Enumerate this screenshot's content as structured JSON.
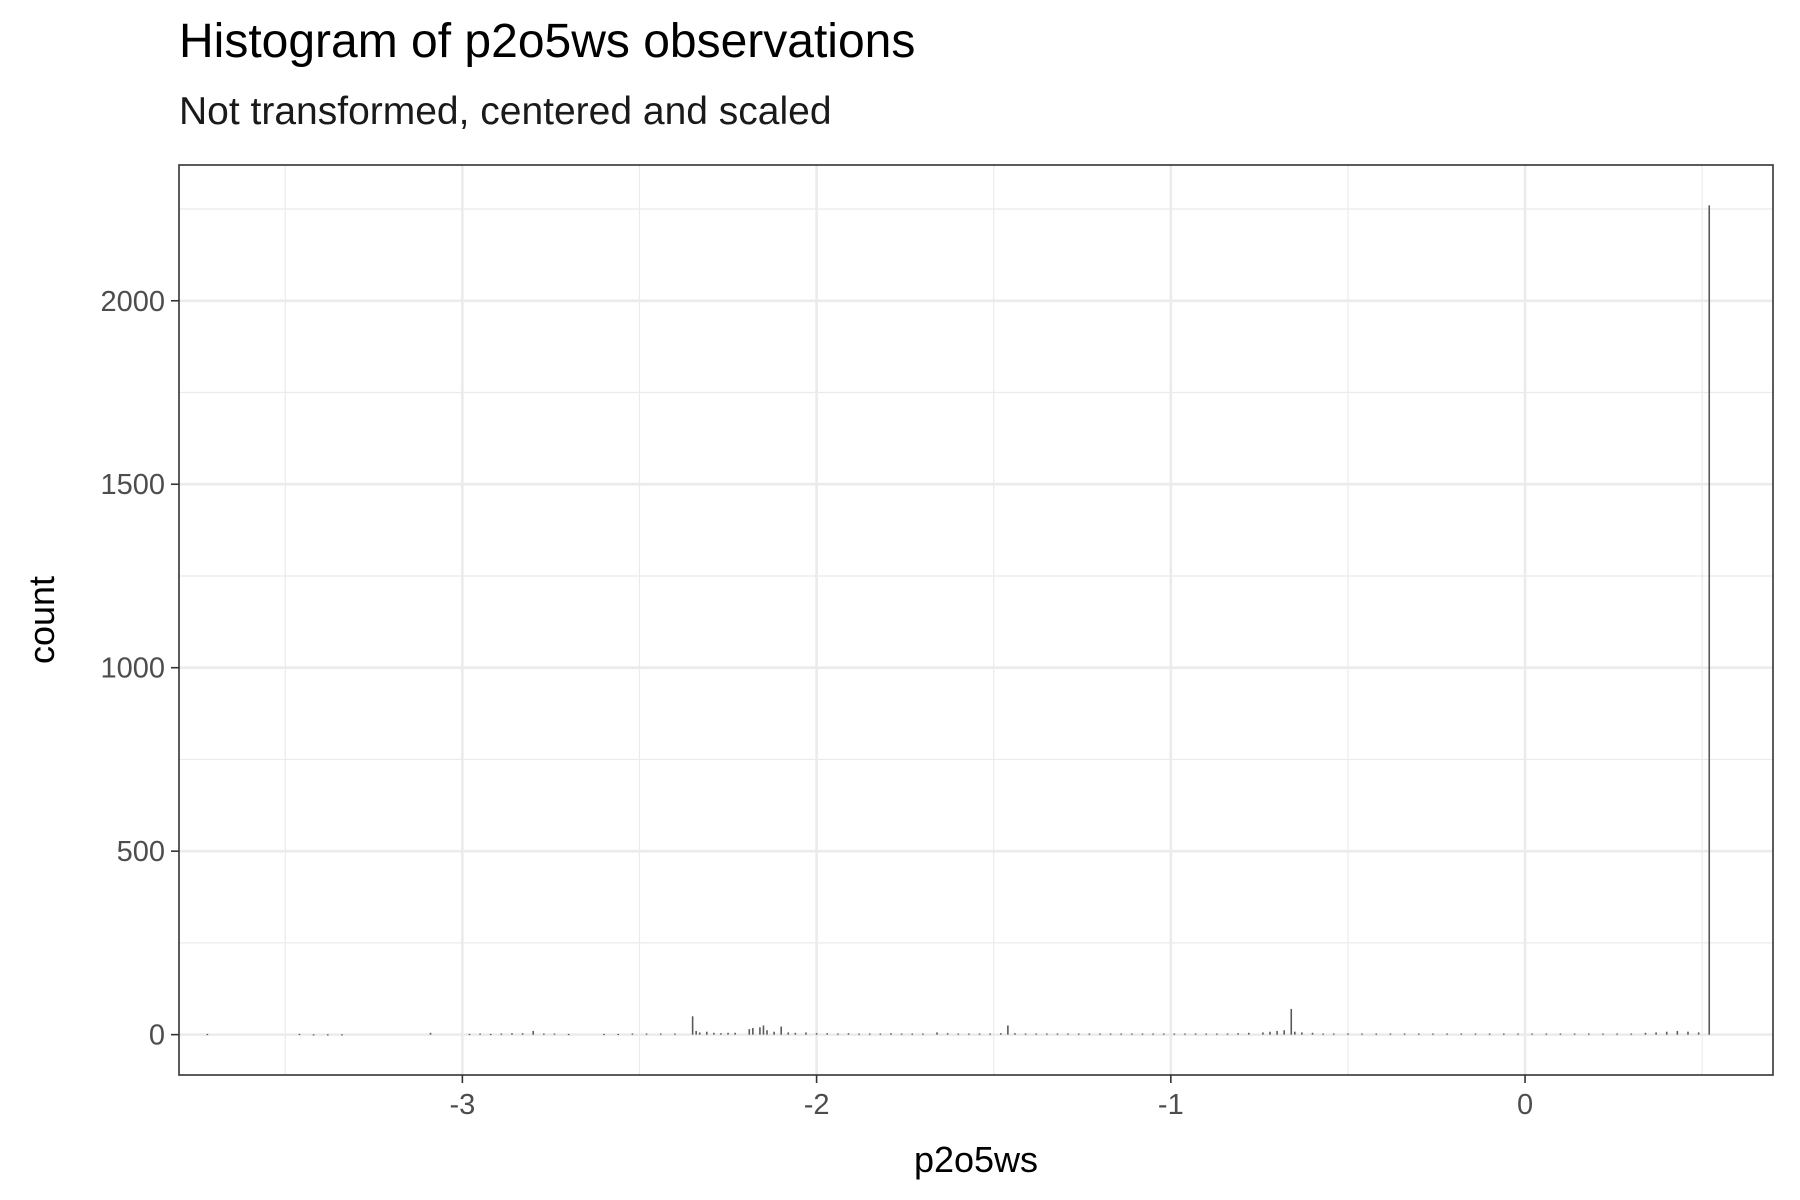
{
  "chart_data": {
    "type": "bar",
    "title": "Histogram of p2o5ws observations",
    "subtitle": "Not transformed, centered and scaled",
    "xlabel": "p2o5ws",
    "ylabel": "count",
    "xlim": [
      -3.8,
      0.7
    ],
    "ylim": [
      -110,
      2370
    ],
    "x_ticks": [
      -3,
      -2,
      -1,
      0
    ],
    "x_tick_labels": [
      "-3",
      "-2",
      "-1",
      "0"
    ],
    "y_ticks": [
      0,
      500,
      1000,
      1500,
      2000
    ],
    "y_tick_labels": [
      "0",
      "500",
      "1000",
      "1500",
      "2000"
    ],
    "grid": true,
    "bar_color": "#595959",
    "bin_width": 0.0045,
    "bins": [
      [
        -3.72,
        2
      ],
      [
        -3.46,
        2
      ],
      [
        -3.42,
        1
      ],
      [
        -3.38,
        1
      ],
      [
        -3.34,
        1
      ],
      [
        -3.09,
        5
      ],
      [
        -2.98,
        2
      ],
      [
        -2.95,
        3
      ],
      [
        -2.92,
        2
      ],
      [
        -2.89,
        3
      ],
      [
        -2.86,
        4
      ],
      [
        -2.83,
        4
      ],
      [
        -2.8,
        10
      ],
      [
        -2.77,
        3
      ],
      [
        -2.74,
        3
      ],
      [
        -2.7,
        2
      ],
      [
        -2.6,
        2
      ],
      [
        -2.56,
        2
      ],
      [
        -2.52,
        3
      ],
      [
        -2.48,
        3
      ],
      [
        -2.44,
        3
      ],
      [
        -2.4,
        3
      ],
      [
        -2.35,
        50
      ],
      [
        -2.34,
        10
      ],
      [
        -2.33,
        6
      ],
      [
        -2.31,
        8
      ],
      [
        -2.29,
        5
      ],
      [
        -2.27,
        4
      ],
      [
        -2.25,
        5
      ],
      [
        -2.23,
        5
      ],
      [
        -2.19,
        15
      ],
      [
        -2.18,
        18
      ],
      [
        -2.16,
        20
      ],
      [
        -2.15,
        25
      ],
      [
        -2.14,
        12
      ],
      [
        -2.12,
        8
      ],
      [
        -2.1,
        22
      ],
      [
        -2.08,
        6
      ],
      [
        -2.06,
        5
      ],
      [
        -2.03,
        6
      ],
      [
        -2.0,
        4
      ],
      [
        -1.97,
        4
      ],
      [
        -1.94,
        3
      ],
      [
        -1.91,
        4
      ],
      [
        -1.88,
        3
      ],
      [
        -1.85,
        3
      ],
      [
        -1.82,
        3
      ],
      [
        -1.79,
        4
      ],
      [
        -1.76,
        3
      ],
      [
        -1.73,
        3
      ],
      [
        -1.7,
        3
      ],
      [
        -1.66,
        6
      ],
      [
        -1.63,
        4
      ],
      [
        -1.6,
        3
      ],
      [
        -1.57,
        3
      ],
      [
        -1.54,
        3
      ],
      [
        -1.51,
        3
      ],
      [
        -1.48,
        4
      ],
      [
        -1.46,
        25
      ],
      [
        -1.44,
        4
      ],
      [
        -1.41,
        3
      ],
      [
        -1.38,
        3
      ],
      [
        -1.35,
        3
      ],
      [
        -1.32,
        3
      ],
      [
        -1.29,
        3
      ],
      [
        -1.26,
        3
      ],
      [
        -1.23,
        3
      ],
      [
        -1.2,
        3
      ],
      [
        -1.17,
        3
      ],
      [
        -1.14,
        3
      ],
      [
        -1.11,
        3
      ],
      [
        -1.08,
        3
      ],
      [
        -1.05,
        3
      ],
      [
        -1.02,
        3
      ],
      [
        -0.99,
        3
      ],
      [
        -0.96,
        3
      ],
      [
        -0.93,
        3
      ],
      [
        -0.9,
        3
      ],
      [
        -0.87,
        3
      ],
      [
        -0.84,
        3
      ],
      [
        -0.81,
        4
      ],
      [
        -0.78,
        5
      ],
      [
        -0.74,
        6
      ],
      [
        -0.72,
        8
      ],
      [
        -0.7,
        10
      ],
      [
        -0.68,
        12
      ],
      [
        -0.66,
        70
      ],
      [
        -0.65,
        8
      ],
      [
        -0.63,
        6
      ],
      [
        -0.6,
        5
      ],
      [
        -0.57,
        3
      ],
      [
        -0.54,
        3
      ],
      [
        -0.5,
        3
      ],
      [
        -0.46,
        3
      ],
      [
        -0.42,
        3
      ],
      [
        -0.38,
        3
      ],
      [
        -0.34,
        3
      ],
      [
        -0.3,
        3
      ],
      [
        -0.26,
        3
      ],
      [
        -0.22,
        3
      ],
      [
        -0.18,
        3
      ],
      [
        -0.14,
        3
      ],
      [
        -0.1,
        3
      ],
      [
        -0.06,
        3
      ],
      [
        -0.02,
        3
      ],
      [
        0.02,
        3
      ],
      [
        0.06,
        3
      ],
      [
        0.1,
        3
      ],
      [
        0.14,
        3
      ],
      [
        0.18,
        3
      ],
      [
        0.22,
        3
      ],
      [
        0.26,
        3
      ],
      [
        0.3,
        3
      ],
      [
        0.34,
        5
      ],
      [
        0.37,
        6
      ],
      [
        0.4,
        8
      ],
      [
        0.43,
        10
      ],
      [
        0.46,
        8
      ],
      [
        0.49,
        6
      ],
      [
        0.52,
        2260
      ]
    ]
  }
}
